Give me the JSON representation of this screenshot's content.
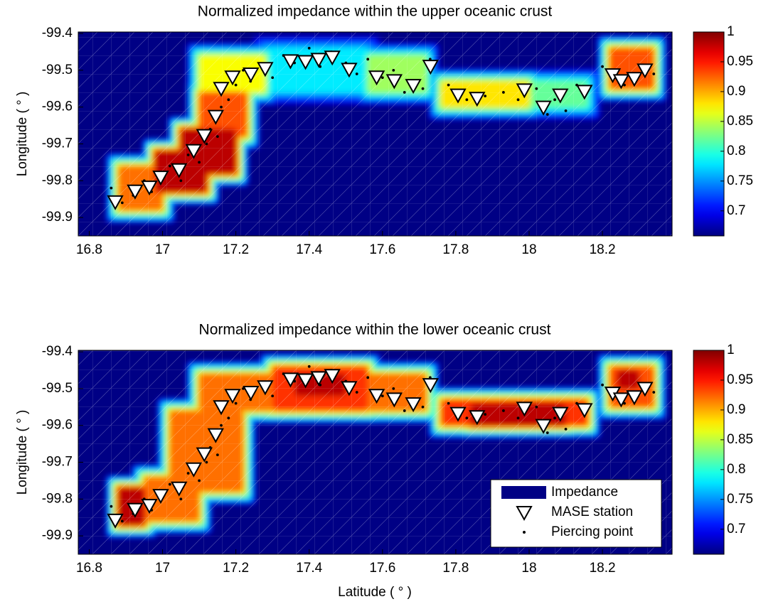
{
  "chart_data": [
    {
      "type": "heatmap",
      "title": "Normalized impedance within the upper oceanic crust",
      "ylabel": "Longitude ( ° )",
      "xlim": [
        16.77,
        18.39
      ],
      "ylim": [
        -99.95,
        -99.396
      ],
      "xticks": [
        16.8,
        17,
        17.2,
        17.4,
        17.6,
        17.8,
        18,
        18.2
      ],
      "yticks": [
        -99.4,
        -99.5,
        -99.6,
        -99.7,
        -99.8,
        -99.9
      ],
      "colormap": "jet",
      "clim": [
        0.658,
        1
      ],
      "cticks": [
        0.7,
        0.75,
        0.8,
        0.85,
        0.9,
        0.95,
        1
      ],
      "background_value": 0.66,
      "regions": [
        {
          "x": [
            16.88,
            17.0
          ],
          "y": [
            -99.88,
            -99.76
          ],
          "value": 0.92
        },
        {
          "x": [
            16.98,
            17.12
          ],
          "y": [
            -99.83,
            -99.72
          ],
          "value": 0.98
        },
        {
          "x": [
            17.05,
            17.2
          ],
          "y": [
            -99.78,
            -99.66
          ],
          "value": 0.98
        },
        {
          "x": [
            17.1,
            17.23
          ],
          "y": [
            -99.68,
            -99.56
          ],
          "value": 0.93
        },
        {
          "x": [
            17.1,
            17.28
          ],
          "y": [
            -99.56,
            -99.46
          ],
          "value": 0.87
        },
        {
          "x": [
            17.28,
            17.56
          ],
          "y": [
            -99.56,
            -99.44
          ],
          "value": 0.78
        },
        {
          "x": [
            17.56,
            17.72
          ],
          "y": [
            -99.56,
            -99.46
          ],
          "value": 0.84
        },
        {
          "x": [
            17.76,
            18.0
          ],
          "y": [
            -99.6,
            -99.53
          ],
          "value": 0.88
        },
        {
          "x": [
            18.0,
            18.16
          ],
          "y": [
            -99.6,
            -99.53
          ],
          "value": 0.82
        },
        {
          "x": [
            18.22,
            18.34
          ],
          "y": [
            -99.55,
            -99.44
          ],
          "value": 0.93
        }
      ],
      "stations": {
        "x": [
          16.871,
          16.925,
          16.964,
          16.995,
          17.045,
          17.085,
          17.114,
          17.145,
          17.16,
          17.191,
          17.241,
          17.28,
          17.349,
          17.39,
          17.426,
          17.463,
          17.509,
          17.584,
          17.632,
          17.684,
          17.731,
          17.806,
          17.858,
          17.987,
          18.039,
          18.085,
          18.151,
          18.228,
          18.251,
          18.287,
          18.316
        ],
        "y": [
          -99.857,
          -99.828,
          -99.817,
          -99.79,
          -99.77,
          -99.718,
          -99.677,
          -99.625,
          -99.549,
          -99.518,
          -99.51,
          -99.495,
          -99.474,
          -99.476,
          -99.47,
          -99.464,
          -99.497,
          -99.518,
          -99.528,
          -99.541,
          -99.489,
          -99.567,
          -99.576,
          -99.553,
          -99.6,
          -99.567,
          -99.557,
          -99.512,
          -99.528,
          -99.522,
          -99.499
        ]
      },
      "piercing_points": {
        "x": [
          16.86,
          16.89,
          16.92,
          16.95,
          16.97,
          17.0,
          17.02,
          17.05,
          17.07,
          17.1,
          17.12,
          17.13,
          17.15,
          17.16,
          17.18,
          17.2,
          17.22,
          17.24,
          17.27,
          17.3,
          17.33,
          17.36,
          17.4,
          17.43,
          17.46,
          17.5,
          17.53,
          17.56,
          17.6,
          17.63,
          17.66,
          17.68,
          17.71,
          17.73,
          17.78,
          17.83,
          17.88,
          17.93,
          17.97,
          18.02,
          18.05,
          18.07,
          18.1,
          18.13,
          18.2,
          18.23,
          18.26,
          18.29,
          18.31,
          18.34
        ],
        "y": [
          -99.82,
          -99.86,
          -99.84,
          -99.8,
          -99.83,
          -99.79,
          -99.76,
          -99.8,
          -99.73,
          -99.75,
          -99.7,
          -99.66,
          -99.68,
          -99.6,
          -99.58,
          -99.54,
          -99.5,
          -99.53,
          -99.49,
          -99.52,
          -99.46,
          -99.48,
          -99.44,
          -99.49,
          -99.45,
          -99.48,
          -99.51,
          -99.47,
          -99.52,
          -99.5,
          -99.56,
          -99.53,
          -99.55,
          -99.47,
          -99.54,
          -99.58,
          -99.57,
          -99.56,
          -99.58,
          -99.55,
          -99.62,
          -99.58,
          -99.61,
          -99.54,
          -99.49,
          -99.51,
          -99.54,
          -99.53,
          -99.5,
          -99.51
        ]
      }
    },
    {
      "type": "heatmap",
      "title": "Normalized impedance within the lower oceanic crust",
      "xlabel": "Latitude ( ° )",
      "ylabel": "Longitude ( ° )",
      "xlim": [
        16.77,
        18.39
      ],
      "ylim": [
        -99.95,
        -99.396
      ],
      "xticks": [
        16.8,
        17,
        17.2,
        17.4,
        17.6,
        17.8,
        18,
        18.2
      ],
      "yticks": [
        -99.4,
        -99.5,
        -99.6,
        -99.7,
        -99.8,
        -99.9
      ],
      "colormap": "jet",
      "clim": [
        0.658,
        1
      ],
      "cticks": [
        0.7,
        0.75,
        0.8,
        0.85,
        0.9,
        0.95,
        1
      ],
      "background_value": 0.66,
      "regions": [
        {
          "x": [
            16.88,
            16.95
          ],
          "y": [
            -99.87,
            -99.77
          ],
          "value": 0.98
        },
        {
          "x": [
            16.95,
            17.1
          ],
          "y": [
            -99.86,
            -99.74
          ],
          "value": 0.92
        },
        {
          "x": [
            17.02,
            17.22
          ],
          "y": [
            -99.78,
            -99.56
          ],
          "value": 0.92
        },
        {
          "x": [
            17.1,
            17.3
          ],
          "y": [
            -99.56,
            -99.46
          ],
          "value": 0.92
        },
        {
          "x": [
            17.3,
            17.56
          ],
          "y": [
            -99.56,
            -99.44
          ],
          "value": 0.94
        },
        {
          "x": [
            17.36,
            17.5
          ],
          "y": [
            -99.52,
            -99.46
          ],
          "value": 0.98
        },
        {
          "x": [
            17.56,
            17.72
          ],
          "y": [
            -99.56,
            -99.46
          ],
          "value": 0.92
        },
        {
          "x": [
            17.76,
            18.16
          ],
          "y": [
            -99.6,
            -99.53
          ],
          "value": 0.94
        },
        {
          "x": [
            17.84,
            18.1
          ],
          "y": [
            -99.6,
            -99.54
          ],
          "value": 0.98
        },
        {
          "x": [
            18.22,
            18.34
          ],
          "y": [
            -99.55,
            -99.44
          ],
          "value": 0.93
        },
        {
          "x": [
            18.24,
            18.3
          ],
          "y": [
            -99.5,
            -99.45
          ],
          "value": 0.98
        }
      ],
      "stations": {
        "x": [
          16.871,
          16.925,
          16.964,
          16.995,
          17.045,
          17.085,
          17.114,
          17.145,
          17.16,
          17.191,
          17.241,
          17.28,
          17.349,
          17.39,
          17.426,
          17.463,
          17.509,
          17.584,
          17.632,
          17.684,
          17.731,
          17.806,
          17.858,
          17.987,
          18.039,
          18.085,
          18.151,
          18.228,
          18.251,
          18.287,
          18.316
        ],
        "y": [
          -99.857,
          -99.828,
          -99.817,
          -99.79,
          -99.77,
          -99.718,
          -99.677,
          -99.625,
          -99.549,
          -99.518,
          -99.51,
          -99.495,
          -99.474,
          -99.476,
          -99.47,
          -99.464,
          -99.497,
          -99.518,
          -99.528,
          -99.541,
          -99.489,
          -99.567,
          -99.576,
          -99.553,
          -99.6,
          -99.567,
          -99.557,
          -99.512,
          -99.528,
          -99.522,
          -99.499
        ]
      },
      "piercing_points": {
        "x": [
          16.86,
          16.89,
          16.92,
          16.95,
          16.97,
          17.0,
          17.02,
          17.05,
          17.07,
          17.1,
          17.12,
          17.13,
          17.15,
          17.16,
          17.18,
          17.2,
          17.22,
          17.24,
          17.27,
          17.3,
          17.33,
          17.36,
          17.4,
          17.43,
          17.46,
          17.5,
          17.53,
          17.56,
          17.6,
          17.63,
          17.66,
          17.68,
          17.71,
          17.73,
          17.78,
          17.83,
          17.88,
          17.93,
          17.97,
          18.02,
          18.05,
          18.07,
          18.1,
          18.13,
          18.2,
          18.23,
          18.26,
          18.29,
          18.31,
          18.34
        ],
        "y": [
          -99.82,
          -99.86,
          -99.84,
          -99.8,
          -99.83,
          -99.79,
          -99.76,
          -99.8,
          -99.73,
          -99.75,
          -99.7,
          -99.66,
          -99.68,
          -99.6,
          -99.58,
          -99.54,
          -99.5,
          -99.53,
          -99.49,
          -99.52,
          -99.46,
          -99.48,
          -99.44,
          -99.49,
          -99.45,
          -99.48,
          -99.51,
          -99.47,
          -99.52,
          -99.5,
          -99.56,
          -99.53,
          -99.55,
          -99.47,
          -99.54,
          -99.58,
          -99.57,
          -99.56,
          -99.58,
          -99.55,
          -99.62,
          -99.58,
          -99.61,
          -99.54,
          -99.49,
          -99.51,
          -99.54,
          -99.53,
          -99.5,
          -99.51
        ]
      },
      "legend": [
        "Impedance",
        "MASE station",
        "Piercing point"
      ],
      "legend_corner": "lower right"
    }
  ]
}
